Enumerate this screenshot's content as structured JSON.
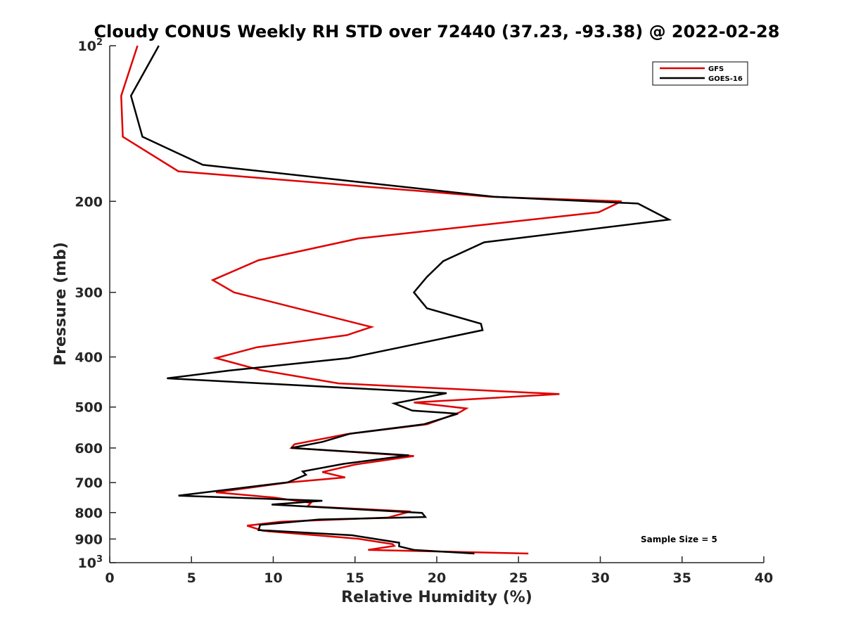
{
  "chart_data": {
    "type": "line",
    "title": "Cloudy CONUS Weekly RH STD over 72440 (37.23, -93.38) @ 2022-02-28",
    "xlabel": "Relative Humidity (%)",
    "ylabel": "Pressure (mb)",
    "xlim": [
      0,
      40
    ],
    "ylim": [
      100,
      1000
    ],
    "y_scale": "log",
    "y_reversed": true,
    "grid": false,
    "legend_placement": "top-right",
    "x_ticks": [
      0,
      5,
      10,
      15,
      20,
      25,
      30,
      35,
      40
    ],
    "x_tick_labels": [
      "0",
      "5",
      "10",
      "15",
      "20",
      "25",
      "30",
      "35",
      "40"
    ],
    "y_ticks": [
      {
        "value": 100,
        "base": "10",
        "exp": "2"
      },
      {
        "value": 200,
        "label": "200"
      },
      {
        "value": 300,
        "label": "300"
      },
      {
        "value": 400,
        "label": "400"
      },
      {
        "value": 500,
        "label": "500"
      },
      {
        "value": 600,
        "label": "600"
      },
      {
        "value": 700,
        "label": "700"
      },
      {
        "value": 800,
        "label": "800"
      },
      {
        "value": 900,
        "label": "900"
      },
      {
        "value": 1000,
        "base": "10",
        "exp": "3"
      }
    ],
    "series": [
      {
        "name": "GFS",
        "color": "#e00000",
        "points": [
          [
            1.7,
            100
          ],
          [
            0.7,
            125
          ],
          [
            0.8,
            150
          ],
          [
            4.2,
            175
          ],
          [
            23.3,
            196
          ],
          [
            31.3,
            200
          ],
          [
            29.9,
            210
          ],
          [
            15.2,
            236
          ],
          [
            9.1,
            260
          ],
          [
            6.3,
            284
          ],
          [
            7.6,
            300
          ],
          [
            16.0,
            350
          ],
          [
            14.5,
            363
          ],
          [
            9.0,
            383
          ],
          [
            6.5,
            402
          ],
          [
            9.2,
            424
          ],
          [
            14.0,
            450
          ],
          [
            27.5,
            472
          ],
          [
            18.6,
            490
          ],
          [
            21.8,
            503
          ],
          [
            21.4,
            512
          ],
          [
            19.4,
            540
          ],
          [
            14.5,
            564
          ],
          [
            11.3,
            590
          ],
          [
            11.1,
            600
          ],
          [
            18.6,
            622
          ],
          [
            15.0,
            646
          ],
          [
            13.0,
            668
          ],
          [
            14.4,
            684
          ],
          [
            11.0,
            699
          ],
          [
            6.5,
            731
          ],
          [
            10.0,
            748
          ],
          [
            12.3,
            766
          ],
          [
            12.1,
            778
          ],
          [
            18.4,
            796
          ],
          [
            17.0,
            818
          ],
          [
            10.5,
            833
          ],
          [
            8.4,
            848
          ],
          [
            9.4,
            868
          ],
          [
            15.2,
            899
          ],
          [
            17.3,
            921
          ],
          [
            17.4,
            928
          ],
          [
            15.8,
            945
          ],
          [
            25.6,
            960
          ]
        ]
      },
      {
        "name": "GOES-16",
        "color": "#000000",
        "points": [
          [
            3.0,
            100
          ],
          [
            1.3,
            125
          ],
          [
            2.0,
            150
          ],
          [
            5.7,
            170
          ],
          [
            23.5,
            196
          ],
          [
            32.3,
            202
          ],
          [
            34.2,
            217
          ],
          [
            22.9,
            240
          ],
          [
            20.4,
            261
          ],
          [
            19.4,
            280
          ],
          [
            18.6,
            300
          ],
          [
            19.4,
            322
          ],
          [
            22.7,
            345
          ],
          [
            22.8,
            355
          ],
          [
            17.8,
            383
          ],
          [
            14.6,
            402
          ],
          [
            7.3,
            425
          ],
          [
            3.5,
            440
          ],
          [
            20.6,
            470
          ],
          [
            17.4,
            492
          ],
          [
            18.5,
            508
          ],
          [
            21.3,
            515
          ],
          [
            19.2,
            540
          ],
          [
            14.7,
            563
          ],
          [
            13.0,
            584
          ],
          [
            11.1,
            600
          ],
          [
            18.3,
            620
          ],
          [
            14.3,
            644
          ],
          [
            11.8,
            666
          ],
          [
            12.0,
            676
          ],
          [
            10.9,
            699
          ],
          [
            4.2,
            742
          ],
          [
            13.0,
            759
          ],
          [
            9.9,
            772
          ],
          [
            19.1,
            801
          ],
          [
            19.3,
            816
          ],
          [
            12.8,
            825
          ],
          [
            9.2,
            845
          ],
          [
            9.1,
            865
          ],
          [
            14.8,
            885
          ],
          [
            17.7,
            915
          ],
          [
            17.7,
            930
          ],
          [
            18.6,
            945
          ],
          [
            22.3,
            960
          ]
        ]
      }
    ],
    "annotation": "Sample Size = 5"
  }
}
